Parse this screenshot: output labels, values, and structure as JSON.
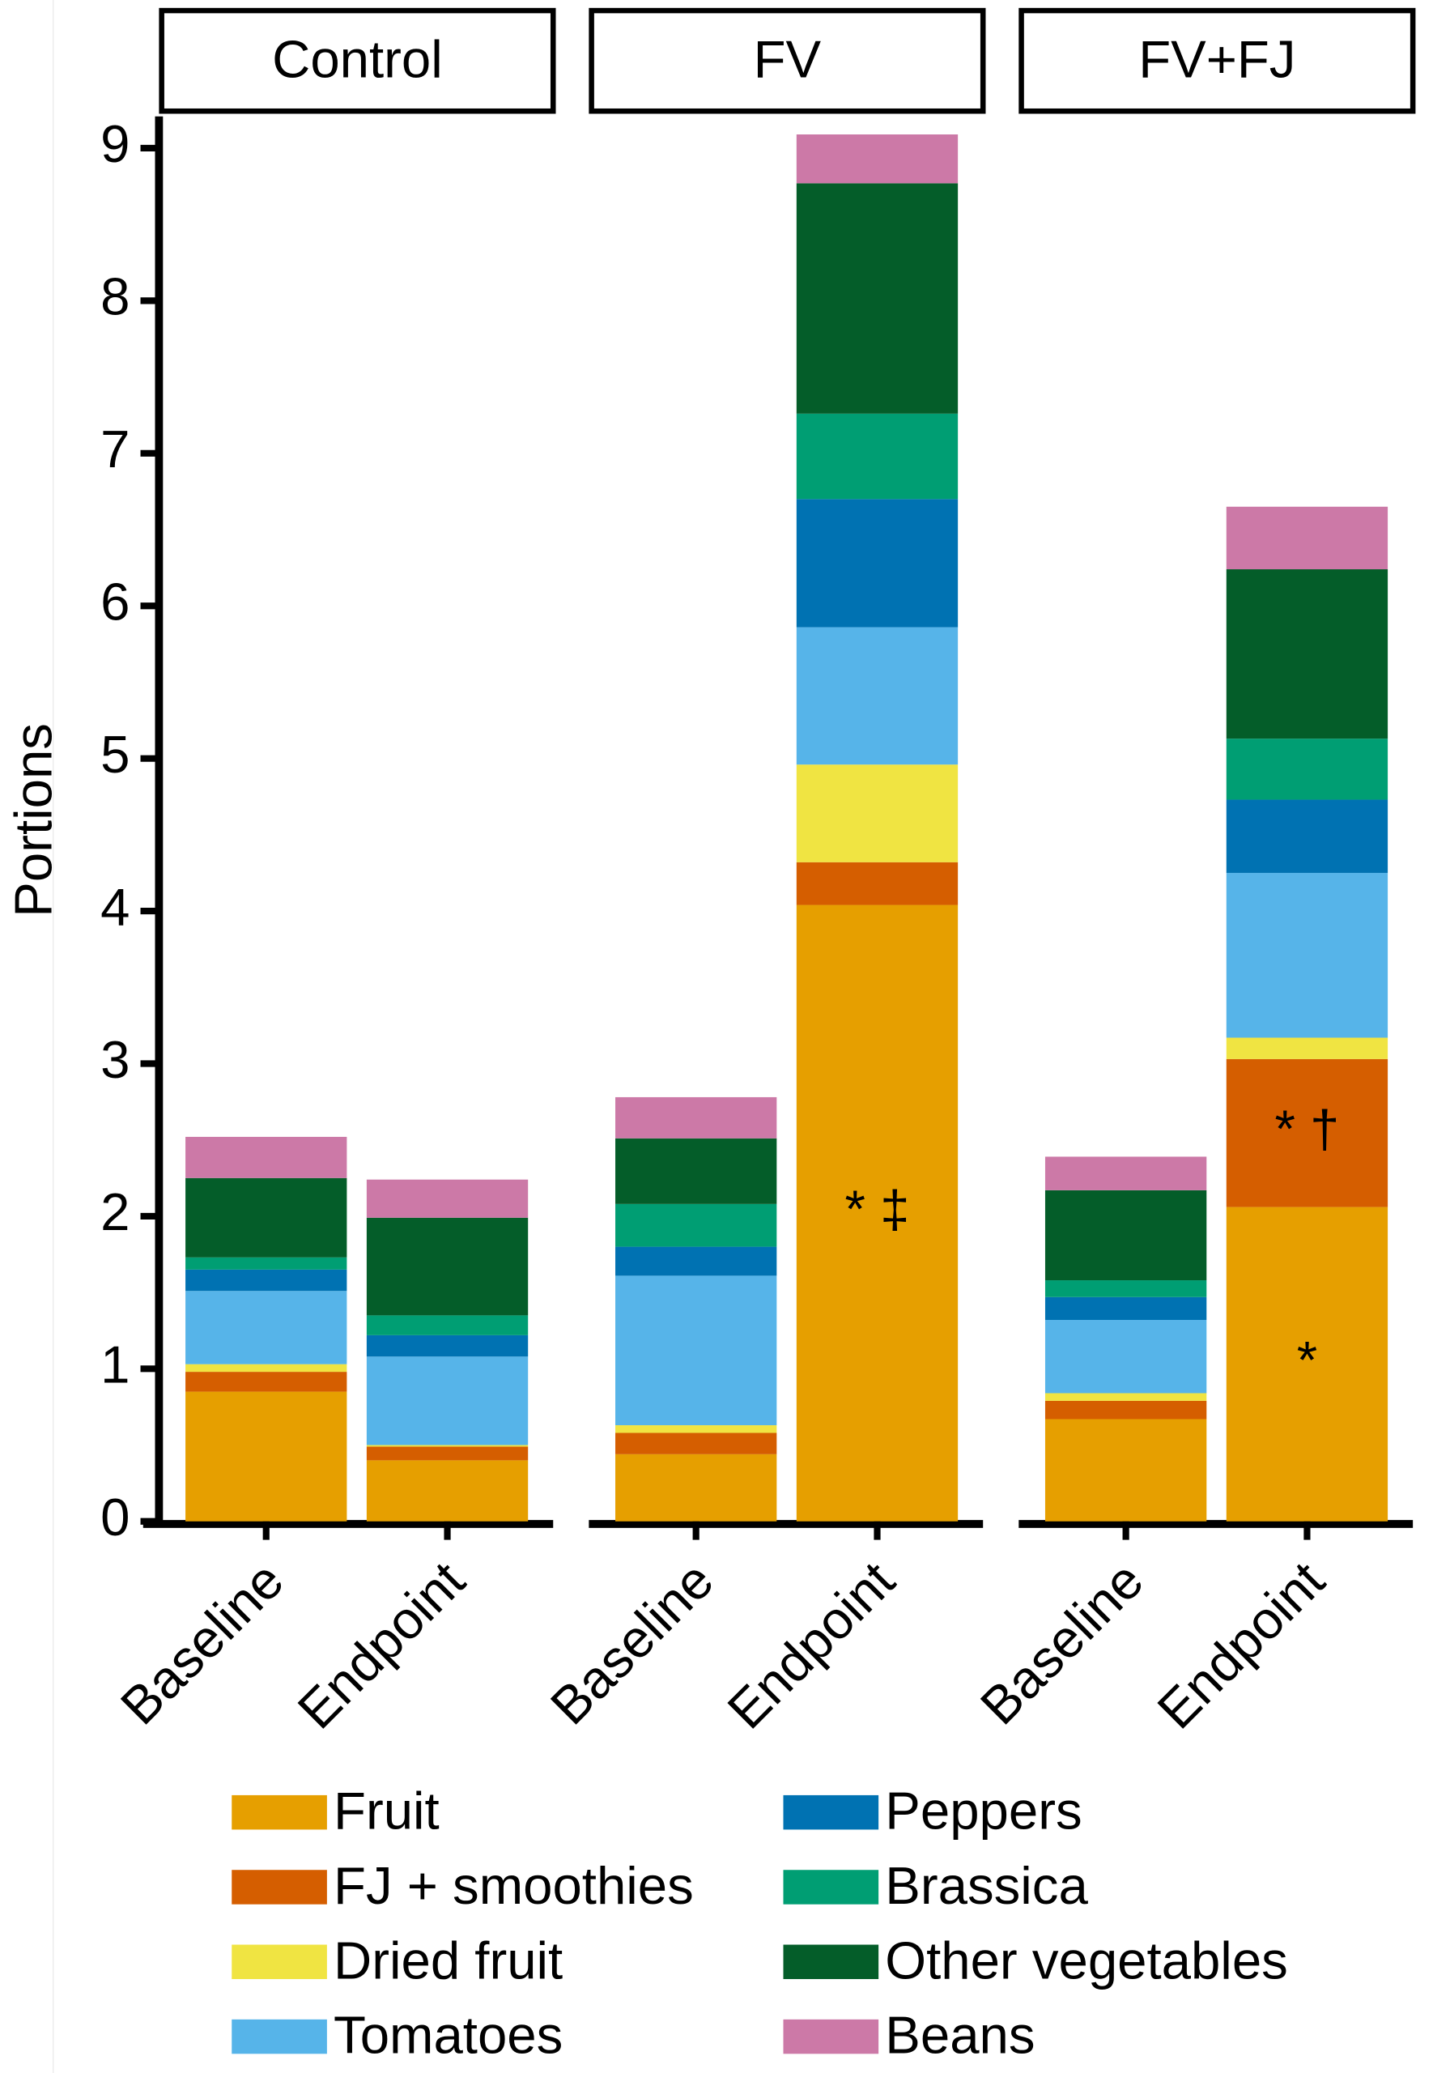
{
  "chart_data": {
    "type": "stacked-bar",
    "ylabel": "Portions",
    "ylim": [
      0,
      9
    ],
    "yticks": [
      0,
      1,
      2,
      3,
      4,
      5,
      6,
      7,
      8,
      9
    ],
    "facets": [
      "Control",
      "FV",
      "FV+FJ"
    ],
    "categories": [
      "Baseline",
      "Endpoint",
      "Baseline",
      "Endpoint",
      "Baseline",
      "Endpoint"
    ],
    "series": [
      {
        "name": "Fruit",
        "color": "#E69F00",
        "values": [
          0.85,
          0.4,
          0.44,
          4.04,
          0.67,
          2.06
        ]
      },
      {
        "name": "FJ + smoothies",
        "color": "#D55E00",
        "values": [
          0.13,
          0.09,
          0.14,
          0.28,
          0.12,
          0.97
        ]
      },
      {
        "name": "Dried fruit",
        "color": "#F0E442",
        "values": [
          0.05,
          0.01,
          0.05,
          0.64,
          0.05,
          0.14
        ]
      },
      {
        "name": "Tomatoes",
        "color": "#56B4E9",
        "values": [
          0.48,
          0.58,
          0.98,
          0.9,
          0.48,
          1.08
        ]
      },
      {
        "name": "Peppers",
        "color": "#0072B2",
        "values": [
          0.14,
          0.14,
          0.19,
          0.84,
          0.15,
          0.48
        ]
      },
      {
        "name": "Brassica",
        "color": "#009E73",
        "values": [
          0.08,
          0.13,
          0.28,
          0.56,
          0.11,
          0.4
        ]
      },
      {
        "name": "Other vegetables",
        "color": "#045D29",
        "values": [
          0.52,
          0.64,
          0.43,
          1.51,
          0.59,
          1.11
        ]
      },
      {
        "name": "Beans",
        "color": "#CC79A7",
        "values": [
          0.27,
          0.25,
          0.27,
          0.32,
          0.22,
          0.41
        ]
      }
    ],
    "annotations": [
      {
        "text": "* ‡",
        "category": 3,
        "series": 0
      },
      {
        "text": "* †",
        "category": 5,
        "series": 1
      },
      {
        "text": "*",
        "category": 5,
        "series": 0
      }
    ]
  }
}
